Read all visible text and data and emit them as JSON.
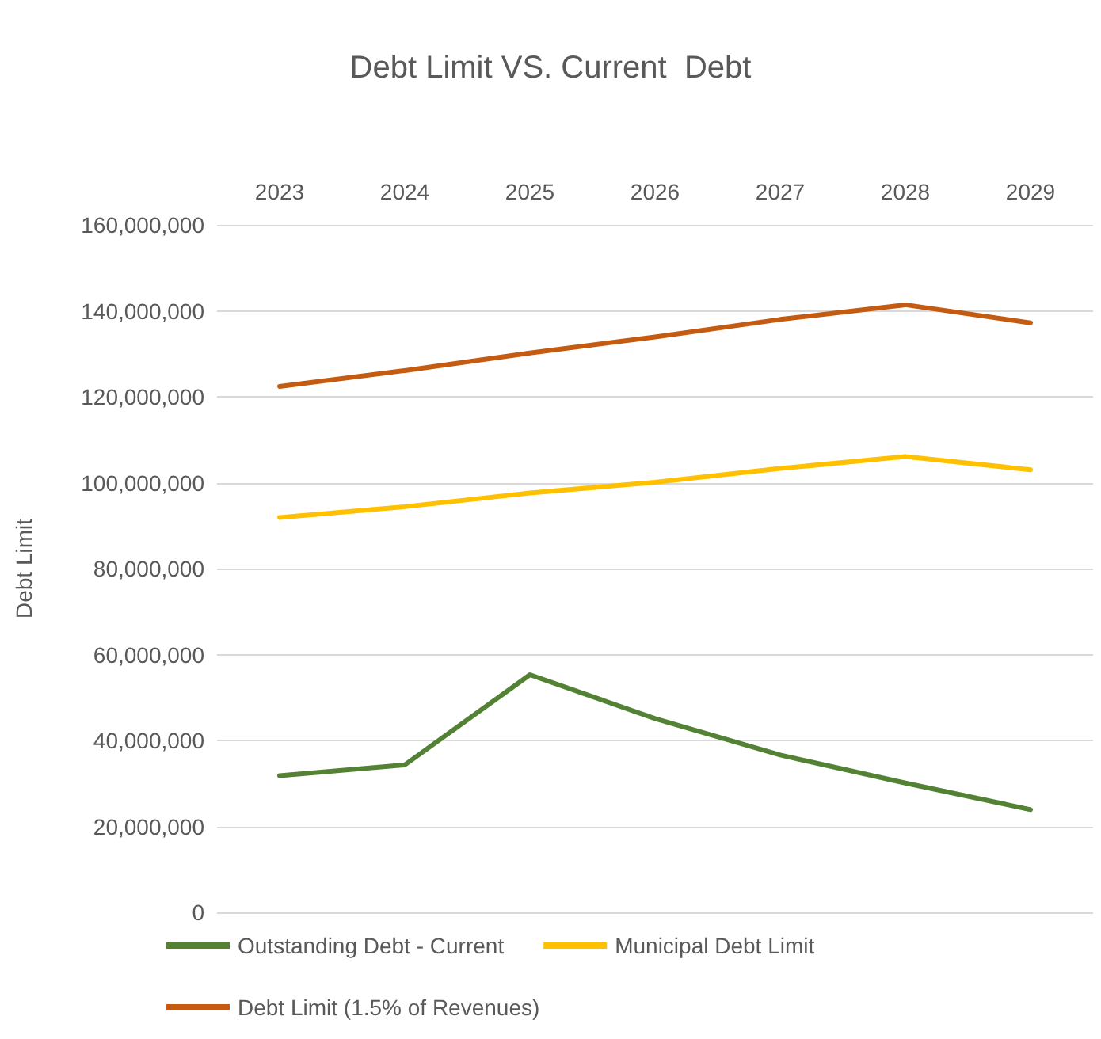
{
  "chart_data": {
    "type": "line",
    "title": "Debt Limit VS. Current  Debt",
    "ylabel": "Debt Limit",
    "categories": [
      "2023",
      "2024",
      "2025",
      "2026",
      "2027",
      "2028",
      "2029"
    ],
    "series": [
      {
        "name": "Outstanding Debt - Current",
        "color": "#548235",
        "values": [
          31800000,
          34300000,
          55300000,
          45100000,
          36600000,
          30100000,
          23900000
        ]
      },
      {
        "name": "Municipal Debt Limit",
        "color": "#ffc000",
        "values": [
          91900000,
          94400000,
          97600000,
          100100000,
          103300000,
          106100000,
          103000000
        ]
      },
      {
        "name": "Debt Limit (1.5% of Revenues)",
        "color": "#c55a11",
        "values": [
          122400000,
          126100000,
          130200000,
          133900000,
          138000000,
          141400000,
          137200000
        ]
      }
    ],
    "ylim": [
      0,
      160000000
    ],
    "yticks": [
      0,
      {
        "value": 20000000,
        "label": "20,000,000"
      },
      {
        "value": 40000000,
        "label": "40,000,000"
      },
      {
        "value": 60000000,
        "label": "60,000,000"
      },
      {
        "value": 80000000,
        "label": "80,000,000"
      },
      {
        "value": 100000000,
        "label": "100,000,000"
      },
      {
        "value": 120000000,
        "label": "120,000,000"
      },
      {
        "value": 140000000,
        "label": "140,000,000"
      },
      {
        "value": 160000000,
        "label": "160,000,000"
      }
    ],
    "grid": "y",
    "legend": "bottom",
    "marker": "none",
    "line_style": "solid"
  }
}
